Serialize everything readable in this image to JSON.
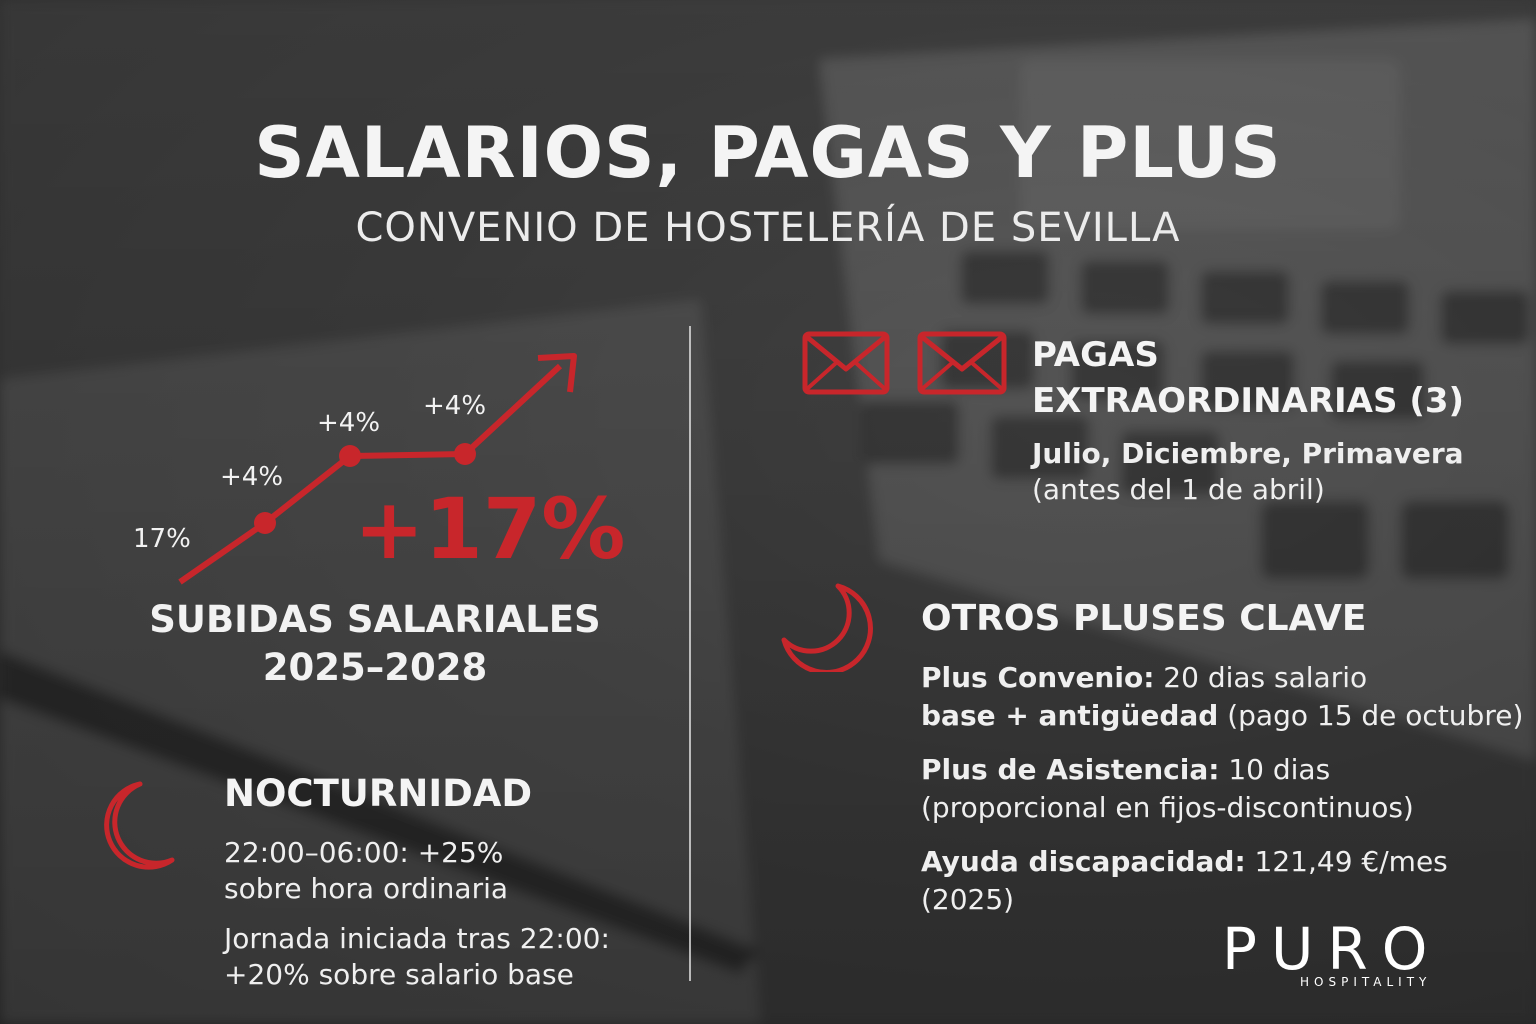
{
  "header": {
    "title": "SALARIOS, PAGAS Y PLUS",
    "subtitle": "CONVENIO DE HOSTELERÍA DE SEVILLA"
  },
  "raises": {
    "start_label": "17%",
    "steps": [
      "+4%",
      "+4%",
      "+4%"
    ],
    "total": "+17%",
    "heading_line1": "SUBIDAS SALARIALES",
    "heading_line2": "2025–2028"
  },
  "nocturnidad": {
    "heading": "NOCTURNIDAD",
    "line1": "22:00–06:00: +25%",
    "line2": "sobre hora ordinaria",
    "line3": "Jornada iniciada tras 22:00:",
    "line4": "+20% sobre salario base"
  },
  "pagas": {
    "heading_line1": "PAGAS",
    "heading_line2": "EXTRAORDINARIAS (3)",
    "months": "Julio, Diciembre, Primavera",
    "note": "(antes del 1 de abril)"
  },
  "pluses": {
    "heading": "OTROS PLUSES CLAVE",
    "convenio_label": "Plus Convenio:",
    "convenio_text1": " 20 dias salario",
    "convenio_bold2": "base + antigüedad",
    "convenio_text2": " (pago 15 de octubre)",
    "asistencia_label": "Plus de Asistencia:",
    "asistencia_text1": " 10 dias",
    "asistencia_text2": "(proporcional en fijos-discontinuos)",
    "discapacidad_label": "Ayuda discapacidad:",
    "discapacidad_text1": " 121,49 €/mes",
    "discapacidad_text2": "(2025)"
  },
  "brand": {
    "name": "PURO",
    "tagline": "HOSPITALITY"
  },
  "colors": {
    "accent": "#c8262b",
    "text": "#f2f2f2"
  },
  "icons": [
    "envelope-icon",
    "envelope-icon",
    "crescent-moon-icon",
    "crescent-moon-icon",
    "trend-arrow-icon"
  ]
}
